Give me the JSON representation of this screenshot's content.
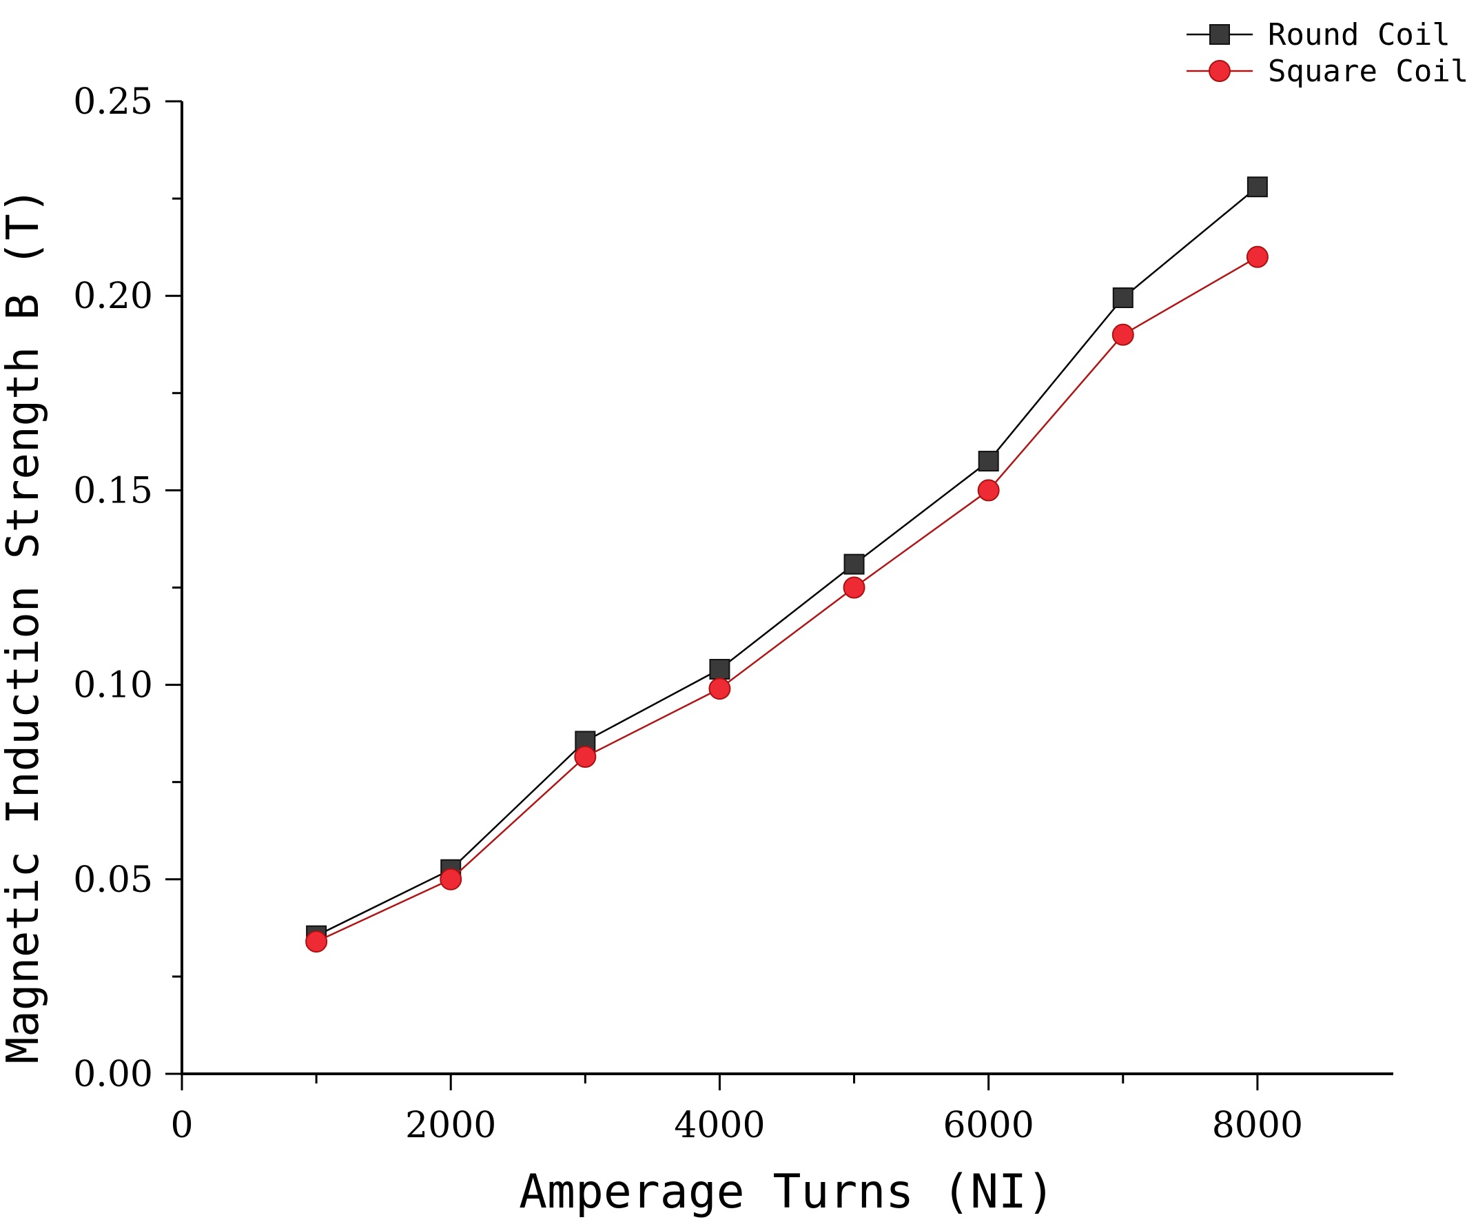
{
  "chart_data": {
    "type": "line",
    "title": "",
    "xlabel": "Amperage Turns (NI)",
    "ylabel": "Magnetic Induction Strength B (T)",
    "xlim": [
      0,
      9000
    ],
    "ylim": [
      0.0,
      0.25
    ],
    "x_ticks": [
      0,
      2000,
      4000,
      6000,
      8000
    ],
    "x_tick_labels": [
      "0",
      "2000",
      "4000",
      "6000",
      "8000"
    ],
    "x_minor_ticks": [
      1000,
      3000,
      5000,
      7000
    ],
    "y_ticks": [
      0.0,
      0.05,
      0.1,
      0.15,
      0.2,
      0.25
    ],
    "y_tick_labels": [
      "0.00",
      "0.05",
      "0.10",
      "0.15",
      "0.20",
      "0.25"
    ],
    "y_minor_ticks": [
      0.025,
      0.075,
      0.125,
      0.175,
      0.225
    ],
    "grid": false,
    "legend_position": "top-right",
    "x": [
      1000,
      2000,
      3000,
      4000,
      5000,
      6000,
      7000,
      8000
    ],
    "series": [
      {
        "name": "Round Coil",
        "marker": "square",
        "color": "#3a3a3a",
        "line_color": "#000000",
        "values": [
          0.0355,
          0.0525,
          0.0855,
          0.104,
          0.131,
          0.1575,
          0.1995,
          0.228
        ]
      },
      {
        "name": "Square Coil",
        "marker": "circle",
        "color": "#ee2a35",
        "line_color": "#b01515",
        "values": [
          0.034,
          0.05,
          0.0815,
          0.099,
          0.125,
          0.15,
          0.19,
          0.21
        ]
      }
    ]
  }
}
